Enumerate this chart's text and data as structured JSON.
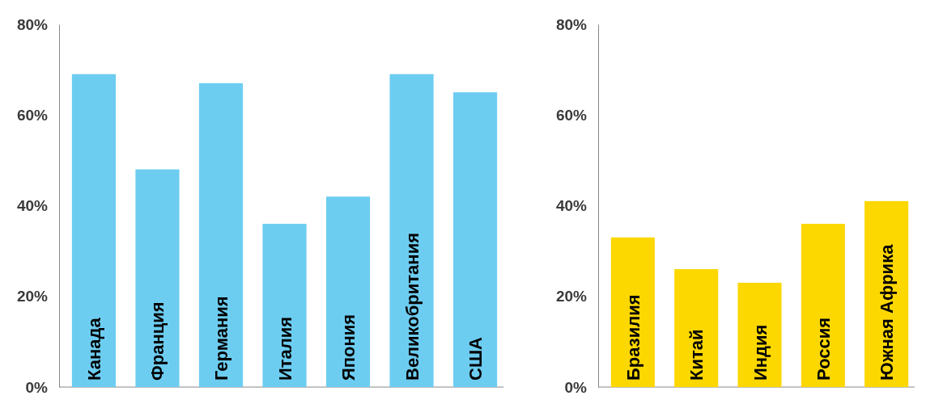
{
  "chart_data": [
    {
      "type": "bar",
      "categories": [
        "Канада",
        "Франция",
        "Германия",
        "Италия",
        "Япония",
        "Великобритания",
        "США"
      ],
      "values": [
        69,
        48,
        67,
        36,
        42,
        69,
        65
      ],
      "color": "#6dcdf1",
      "ylim": [
        0,
        80
      ],
      "yticks": [
        {
          "value": 0,
          "label": "0%"
        },
        {
          "value": 20,
          "label": "20%"
        },
        {
          "value": 40,
          "label": "40%"
        },
        {
          "value": 60,
          "label": "60%"
        },
        {
          "value": 80,
          "label": "80%"
        }
      ],
      "grid": false
    },
    {
      "type": "bar",
      "categories": [
        "Бразилия",
        "Китай",
        "Индия",
        "Россия",
        "Южная Африка"
      ],
      "values": [
        33,
        26,
        23,
        36,
        41
      ],
      "color": "#fdd700",
      "ylim": [
        0,
        80
      ],
      "yticks": [
        {
          "value": 0,
          "label": "0%"
        },
        {
          "value": 20,
          "label": "20%"
        },
        {
          "value": 40,
          "label": "40%"
        },
        {
          "value": 60,
          "label": "60%"
        },
        {
          "value": 80,
          "label": "80%"
        }
      ],
      "grid": false
    }
  ]
}
